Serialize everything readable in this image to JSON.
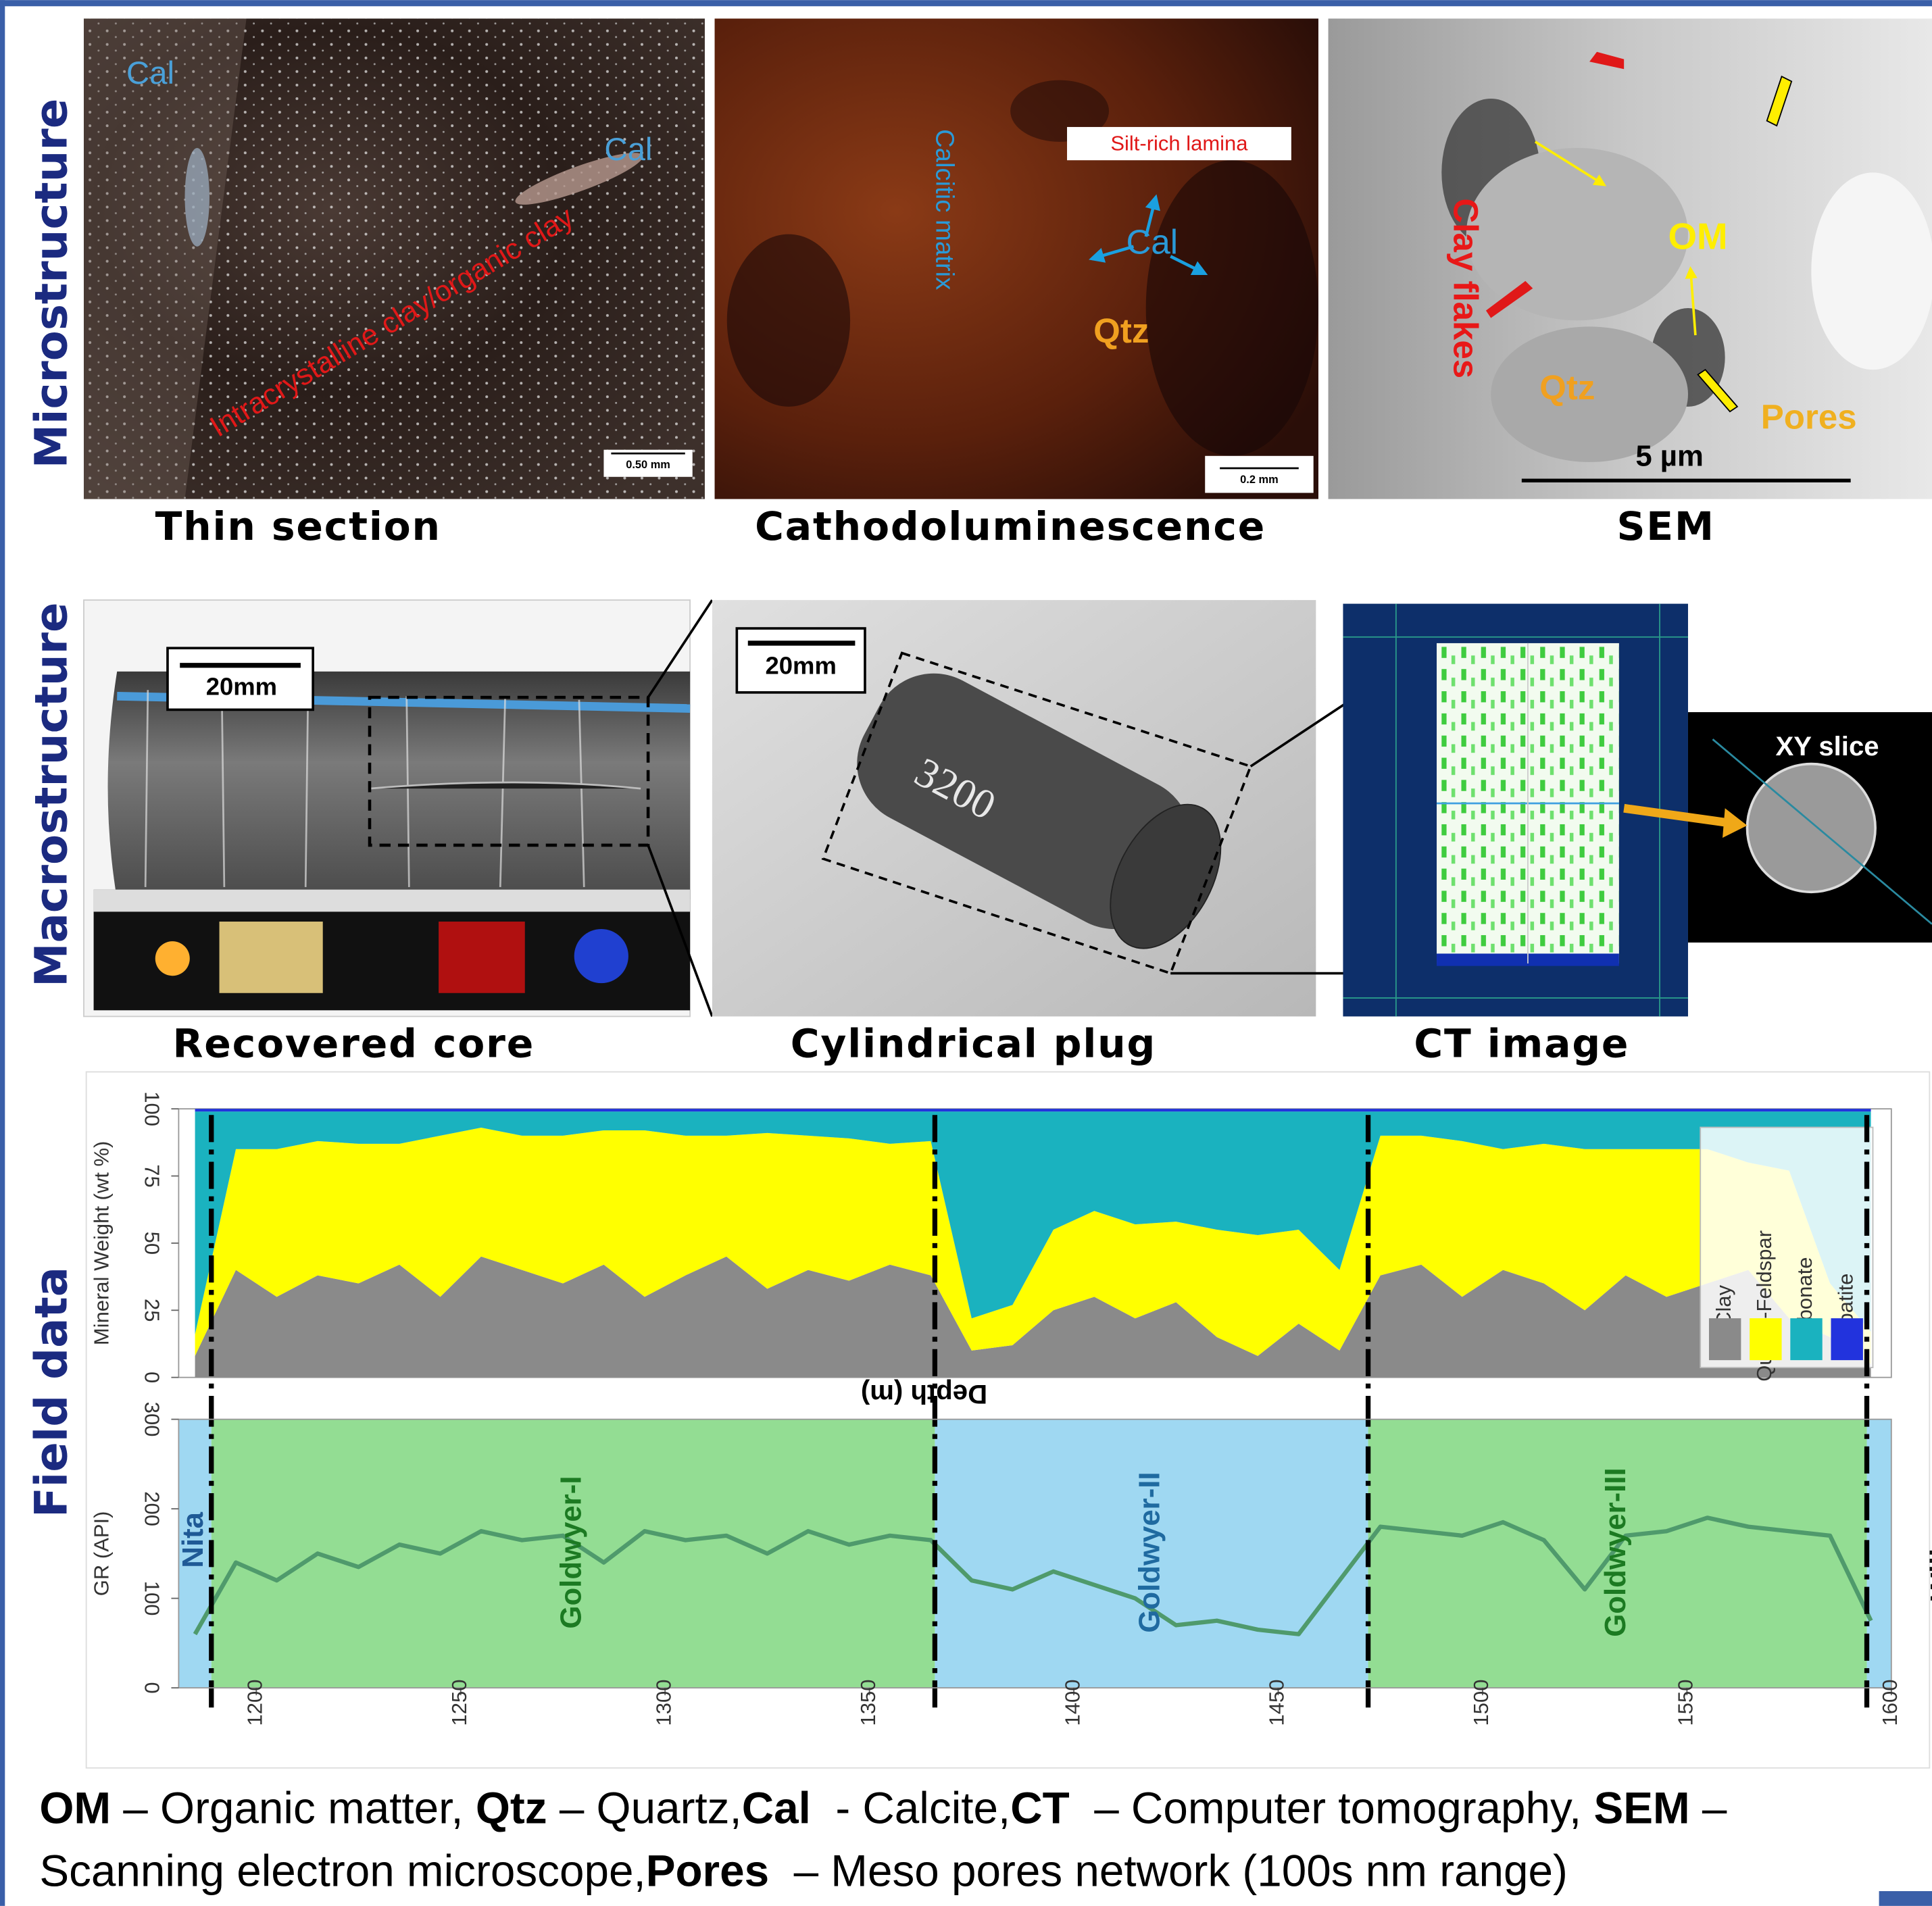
{
  "microstructure": {
    "label": "Microstructure",
    "panels": [
      {
        "caption": "Thin section",
        "annotations": [
          "Cal",
          "Cal",
          "Intracrystalline clay/organic clay"
        ],
        "scale_bar": "0.50 mm"
      },
      {
        "caption": "Cathodoluminescence",
        "annotations": [
          "Calcitic matrix",
          "Silt-rich lamina",
          "Cal",
          "Qtz"
        ],
        "scale_bar": "0.2 mm"
      },
      {
        "caption": "SEM",
        "annotations": [
          "Clay flakes",
          "OM",
          "Qtz",
          "Pores"
        ],
        "scale_bar": "5 µm"
      }
    ]
  },
  "macrostructure": {
    "label": "Macrostructure",
    "panels": [
      {
        "caption": "Recovered core",
        "scale_bar": "20mm"
      },
      {
        "caption": "Cylindrical plug",
        "scale_bar": "20mm",
        "sample_label": "3200"
      },
      {
        "caption": "CT image",
        "inset": "XY slice"
      }
    ]
  },
  "field_data_label": "Field data",
  "chart_data": [
    {
      "type": "stacked-area",
      "ylabel": "Mineral Weight (wt %)",
      "xlabel": "Depth (m)",
      "x": [
        1185,
        1195,
        1205,
        1215,
        1225,
        1235,
        1245,
        1255,
        1265,
        1275,
        1285,
        1295,
        1305,
        1315,
        1325,
        1335,
        1345,
        1355,
        1365,
        1375,
        1385,
        1395,
        1405,
        1415,
        1425,
        1435,
        1445,
        1455,
        1465,
        1475,
        1485,
        1495,
        1505,
        1515,
        1525,
        1535,
        1545,
        1555,
        1565,
        1575,
        1585,
        1595
      ],
      "series": [
        {
          "name": "Clay",
          "color": "#8a8a8a",
          "values": [
            8,
            40,
            30,
            38,
            35,
            42,
            30,
            45,
            40,
            35,
            42,
            30,
            38,
            45,
            33,
            40,
            36,
            42,
            38,
            10,
            12,
            25,
            30,
            22,
            28,
            15,
            8,
            20,
            10,
            38,
            42,
            30,
            40,
            35,
            25,
            38,
            30,
            35,
            40,
            22,
            15,
            5
          ]
        },
        {
          "name": "Quartz-Feldspar",
          "color": "#ffff00",
          "values": [
            8,
            45,
            55,
            50,
            52,
            45,
            60,
            48,
            50,
            55,
            50,
            62,
            52,
            45,
            58,
            50,
            53,
            45,
            50,
            12,
            15,
            30,
            32,
            35,
            30,
            40,
            45,
            35,
            30,
            52,
            48,
            58,
            45,
            52,
            60,
            47,
            55,
            50,
            40,
            55,
            20,
            12
          ]
        },
        {
          "name": "Carbonate",
          "color": "#1ab2bf",
          "values": [
            83,
            14,
            14,
            11,
            12,
            12,
            9,
            6,
            9,
            9,
            7,
            7,
            9,
            9,
            8,
            9,
            10,
            12,
            11,
            77,
            72,
            44,
            37,
            42,
            41,
            44,
            46,
            44,
            59,
            9,
            9,
            11,
            14,
            12,
            14,
            14,
            14,
            14,
            19,
            22,
            64,
            82
          ]
        },
        {
          "name": "Apatite",
          "color": "#2233dd",
          "values": [
            1,
            1,
            1,
            1,
            1,
            1,
            1,
            1,
            1,
            1,
            1,
            1,
            1,
            1,
            1,
            1,
            1,
            1,
            1,
            1,
            1,
            1,
            1,
            1,
            1,
            1,
            1,
            1,
            1,
            1,
            1,
            1,
            1,
            1,
            1,
            1,
            1,
            1,
            1,
            1,
            1,
            1
          ]
        }
      ],
      "xlim": [
        1181,
        1600
      ],
      "ylim": [
        0,
        100
      ],
      "yticks": [
        0,
        25,
        50,
        75,
        100
      ],
      "legend": "right"
    },
    {
      "type": "line",
      "ylabel": "GR (API)",
      "color": "#4f9a6c",
      "x": [
        1185,
        1195,
        1205,
        1215,
        1225,
        1235,
        1245,
        1255,
        1265,
        1275,
        1285,
        1295,
        1305,
        1315,
        1325,
        1335,
        1345,
        1355,
        1365,
        1375,
        1385,
        1395,
        1405,
        1415,
        1425,
        1435,
        1445,
        1455,
        1465,
        1475,
        1485,
        1495,
        1505,
        1515,
        1525,
        1535,
        1545,
        1555,
        1565,
        1575,
        1585,
        1595
      ],
      "values": [
        60,
        140,
        120,
        150,
        135,
        160,
        150,
        175,
        165,
        170,
        140,
        175,
        165,
        170,
        150,
        175,
        160,
        170,
        165,
        120,
        110,
        130,
        115,
        100,
        70,
        75,
        65,
        60,
        120,
        180,
        175,
        170,
        185,
        165,
        110,
        170,
        175,
        190,
        180,
        175,
        170,
        75
      ],
      "xlim": [
        1181,
        1600
      ],
      "xticks": [
        1200,
        1250,
        1300,
        1350,
        1400,
        1450,
        1500,
        1550,
        1600
      ],
      "ylim": [
        0,
        300
      ],
      "yticks": [
        0,
        100,
        200,
        300
      ],
      "zones": [
        {
          "name": "Nita",
          "from": 1181,
          "to": 1189,
          "color": "#9fd8f2",
          "label_color": "#1f5a96"
        },
        {
          "name": "Goldwyer-I",
          "from": 1189,
          "to": 1366,
          "color": "#93dd93",
          "label_color": "#1c7a22"
        },
        {
          "name": "Goldwyer-II",
          "from": 1366,
          "to": 1472,
          "color": "#9fd8f2",
          "label_color": "#1f6aa0"
        },
        {
          "name": "Goldwyer-III",
          "from": 1472,
          "to": 1594,
          "color": "#93dd93",
          "label_color": "#1c7a22"
        },
        {
          "name": "Willara",
          "from": 1594,
          "to": 1600,
          "color": "#9fd8f2",
          "label_color": "#111111"
        }
      ]
    }
  ],
  "footnote": [
    [
      {
        "text": "OM",
        "bold": true
      },
      {
        "text": " – Organic matter, ",
        "bold": false
      },
      {
        "text": "Qtz",
        "bold": true
      },
      {
        "text": " – Quartz,",
        "bold": false
      },
      {
        "text": "Cal",
        "bold": true
      },
      {
        "text": "  - Calcite,",
        "bold": false
      },
      {
        "text": "CT",
        "bold": true
      },
      {
        "text": "  – Computer tomography, ",
        "bold": false
      },
      {
        "text": "SEM",
        "bold": true
      },
      {
        "text": " –",
        "bold": false
      }
    ],
    [
      {
        "text": "Scanning electron microscope,",
        "bold": false
      },
      {
        "text": "Pores",
        "bold": true
      },
      {
        "text": "  – Meso pores network (100s nm range)",
        "bold": false
      }
    ]
  ]
}
